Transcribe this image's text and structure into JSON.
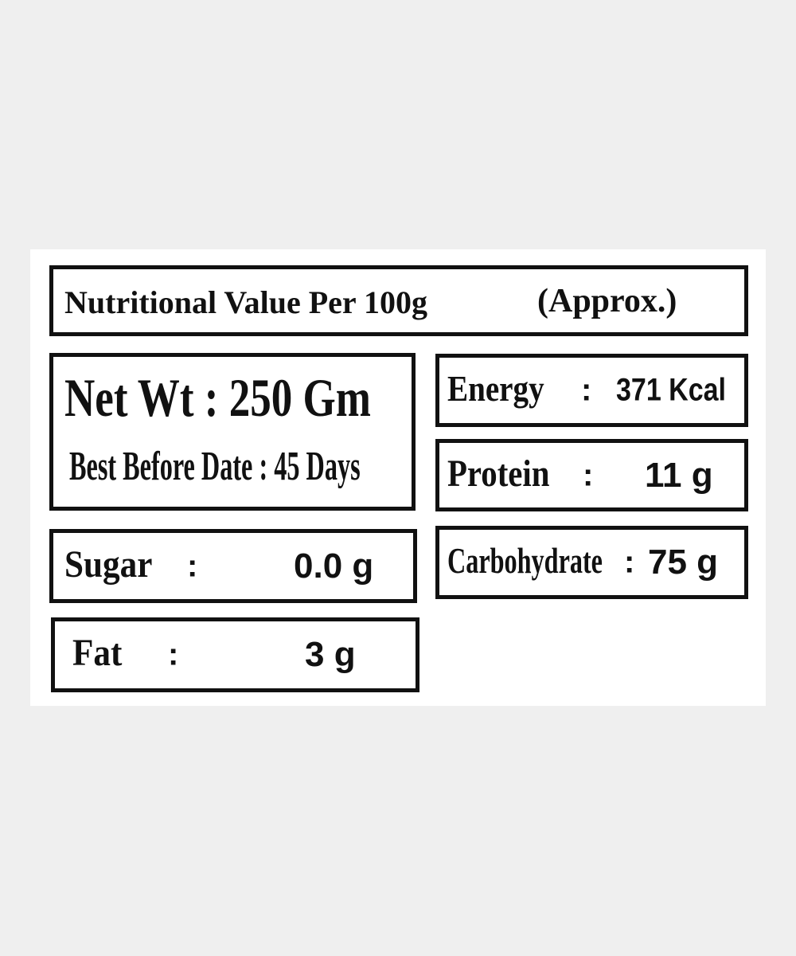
{
  "title": {
    "text": "Nutritional Value Per 100g",
    "note": "(Approx.)"
  },
  "net_weight": {
    "label": "Net Wt",
    "separator": ":",
    "value": "250 Gm"
  },
  "best_before": {
    "label": "Best Before Date",
    "separator": ":",
    "value": "45 Days"
  },
  "nutrients": [
    {
      "label": "Energy",
      "separator": ":",
      "value": "371 Kcal"
    },
    {
      "label": "Protein",
      "separator": ":",
      "value": "11 g"
    },
    {
      "label": "Carbohydrate",
      "separator": ":",
      "value": "75 g"
    },
    {
      "label": "Sugar",
      "separator": ":",
      "value": "0.0 g"
    },
    {
      "label": "Fat",
      "separator": ":",
      "value": "3 g"
    }
  ]
}
